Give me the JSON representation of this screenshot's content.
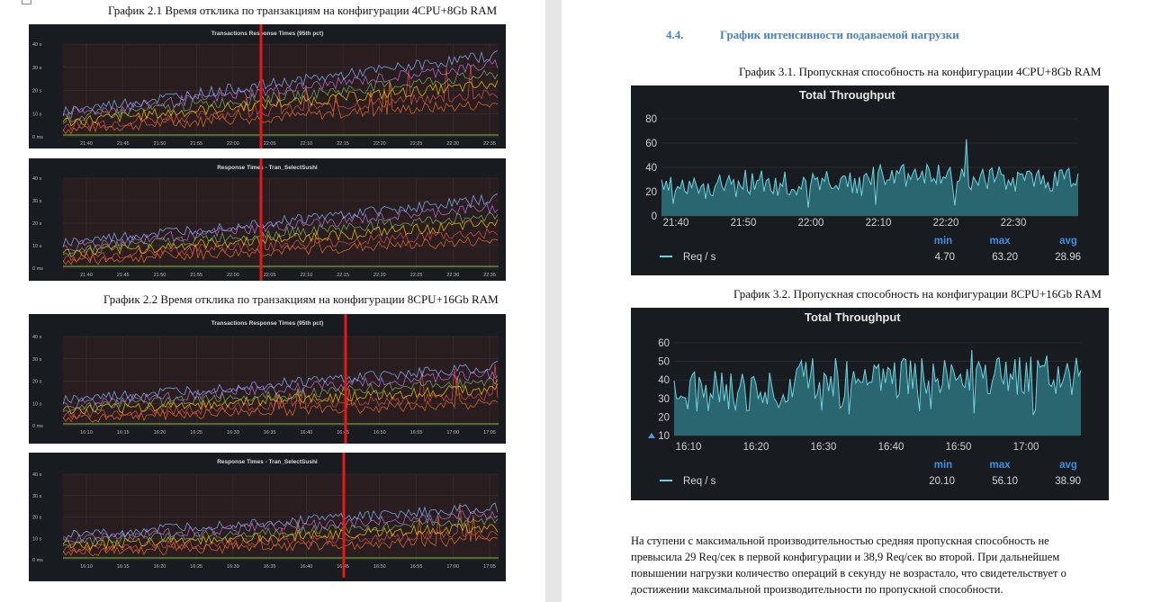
{
  "left_page": {
    "caption1": "График 2.1 Время отклика по транзакциям на конфигурации 4CPU+8Gb RAM",
    "caption2": "График 2.2 Время отклика по транзакциям на конфигурации 8CPU+16Gb RAM",
    "charts": [
      {
        "title": "Transactions Response Times (95th pct)",
        "y_ticks": [
          "40 s",
          "30 s",
          "20 s",
          "10 s",
          "0 ms"
        ],
        "x_ticks": [
          "21:40",
          "21:45",
          "21:50",
          "21:55",
          "22:00",
          "22:05",
          "22:10",
          "22:15",
          "22:20",
          "22:25",
          "22:30",
          "22:35"
        ]
      },
      {
        "title": "Response Times - Tran_SelectSushi",
        "y_ticks": [
          "40 s",
          "30 s",
          "20 s",
          "10 s",
          "0 ms"
        ],
        "x_ticks": [
          "21:40",
          "21:45",
          "21:50",
          "21:55",
          "22:00",
          "22:05",
          "22:10",
          "22:15",
          "22:20",
          "22:25",
          "22:30",
          "22:35"
        ]
      },
      {
        "title": "Transactions Response Times (95th pct)",
        "y_ticks": [
          "40 s",
          "30 s",
          "20 s",
          "10 s",
          "0 ms"
        ],
        "x_ticks": [
          "16:10",
          "16:15",
          "16:20",
          "16:25",
          "16:30",
          "16:35",
          "16:40",
          "16:45",
          "16:50",
          "16:55",
          "17:00",
          "17:05"
        ]
      },
      {
        "title": "Response Times - Tran_SelectSushi",
        "y_ticks": [
          "40 s",
          "30 s",
          "20 s",
          "10 s",
          "0 ms"
        ],
        "x_ticks": [
          "16:10",
          "16:15",
          "16:20",
          "16:25",
          "16:30",
          "16:35",
          "16:40",
          "16:45",
          "16:50",
          "16:55",
          "17:00",
          "17:05"
        ]
      }
    ]
  },
  "right_page": {
    "section_number": "4.4.",
    "section_title": "График интенсивности подаваемой нагрузки",
    "caption1": "График 3.1. Пропускная способность на конфигурации 4CPU+8Gb RAM",
    "caption2": "График 3.2. Пропускная способность на конфигурации 8CPU+16Gb RAM",
    "paragraph": [
      "На ступени с максимальной производительностью средняя пропускная способность не",
      "превысила 29 Req/сек в первой конфигурации и 38,9 Req/сек во второй. При дальнейшем",
      "повышении нагрузки количество операций в секунду не возрастало, что свидетельствует о",
      "достижении максимальной производительности по пропускной способности."
    ]
  },
  "colors": {
    "panel_bg": "#181b1f",
    "series_fill": "#2b6f78",
    "series_line": "#6fd3e0",
    "marker": "#e31a1a",
    "heading": "#4a7fc1"
  },
  "chart_data": [
    {
      "type": "area",
      "title": "Total Throughput",
      "y_ticks": [
        "80",
        "60",
        "40",
        "20",
        "0"
      ],
      "x_ticks": [
        "21:40",
        "21:50",
        "22:00",
        "22:10",
        "22:20",
        "22:30"
      ],
      "ylim": [
        0,
        80
      ],
      "legend": {
        "series": "Req / s",
        "headers": [
          "min",
          "max",
          "avg"
        ],
        "values": [
          "4.70",
          "63.20",
          "28.96"
        ]
      },
      "series": [
        {
          "name": "Req / s",
          "min": 4.7,
          "max": 63.2,
          "avg": 28.96
        }
      ]
    },
    {
      "type": "area",
      "title": "Total Throughput",
      "y_ticks": [
        "60",
        "50",
        "40",
        "30",
        "20",
        "10"
      ],
      "x_ticks": [
        "16:10",
        "16:20",
        "16:30",
        "16:40",
        "16:50",
        "17:00"
      ],
      "ylim": [
        10,
        60
      ],
      "legend": {
        "series": "Req / s",
        "headers": [
          "min",
          "max",
          "avg"
        ],
        "values": [
          "20.10",
          "56.10",
          "38.90"
        ]
      },
      "series": [
        {
          "name": "Req / s",
          "min": 20.1,
          "max": 56.1,
          "avg": 38.9
        }
      ]
    }
  ]
}
